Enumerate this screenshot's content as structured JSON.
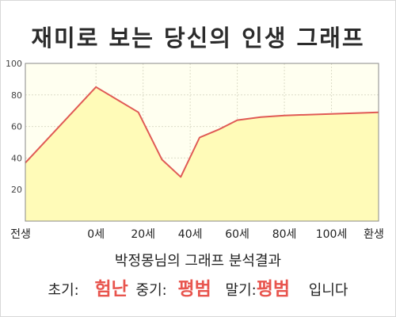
{
  "header": {
    "title": "재미로 보는 당신의 인생 그래프"
  },
  "colors": {
    "line": "#e05a55",
    "fill": "#fffbb8",
    "plot_bg": "#fffff0",
    "grid": "#dcdcc8",
    "highlight": "#e8554e"
  },
  "chart_data": {
    "type": "area",
    "x_categories": [
      "전생",
      "0세",
      "20세",
      "40세",
      "60세",
      "80세",
      "100세",
      "환생"
    ],
    "points": [
      {
        "x": -1.5,
        "y": 37
      },
      {
        "x": 0,
        "y": 85
      },
      {
        "x": 0.9,
        "y": 69
      },
      {
        "x": 1.4,
        "y": 39
      },
      {
        "x": 1.8,
        "y": 28
      },
      {
        "x": 2.2,
        "y": 53
      },
      {
        "x": 2.6,
        "y": 58
      },
      {
        "x": 3.0,
        "y": 64
      },
      {
        "x": 3.5,
        "y": 66
      },
      {
        "x": 4.0,
        "y": 67
      },
      {
        "x": 5.0,
        "y": 68
      },
      {
        "x": 5.8,
        "y": 69
      }
    ],
    "yticks": [
      20,
      40,
      60,
      80,
      100
    ],
    "ylim": [
      0,
      100
    ],
    "grid": true
  },
  "summary": {
    "title": "박정몽님의 그래프 분석결과",
    "early_label": "초기:",
    "early_value": "험난",
    "mid_label": "중기:",
    "mid_value": "평범",
    "late_label": "말기:",
    "late_value": "평범",
    "ending": "입니다"
  }
}
